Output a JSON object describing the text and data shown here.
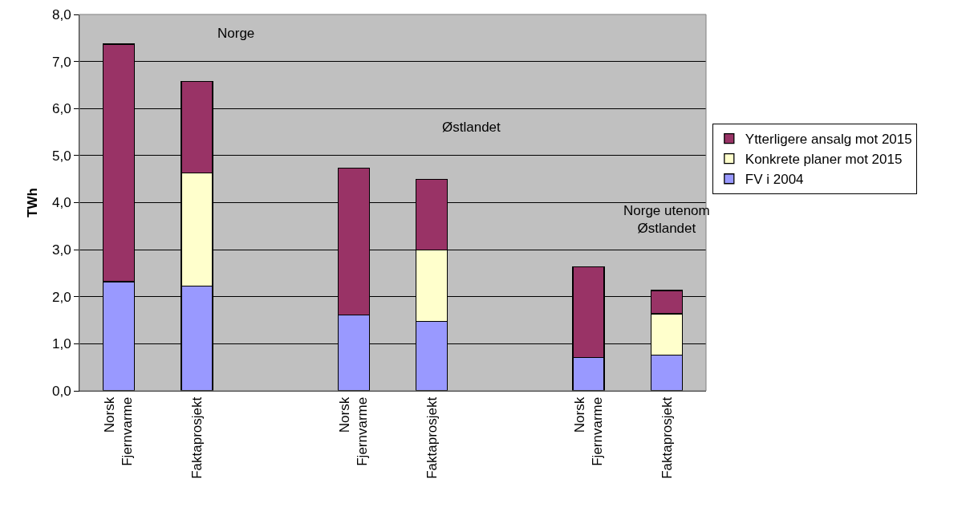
{
  "chart_data": {
    "type": "bar",
    "stacked": true,
    "ylabel": "TWh",
    "categories": [
      "Norsk Fjernvarme",
      "Faktaprosjekt",
      null,
      "Norsk Fjernvarme",
      "Faktaprosjekt",
      null,
      "Norsk Fjernvarme",
      "Faktaprosjekt"
    ],
    "series": [
      {
        "name": "FV i 2004",
        "color": "#9999ff",
        "values": [
          2.32,
          2.23,
          null,
          1.61,
          1.48,
          null,
          0.71,
          0.76
        ]
      },
      {
        "name": "Konkrete planer mot 2015",
        "color": "#ffffcc",
        "values": [
          null,
          2.4,
          null,
          null,
          1.51,
          null,
          null,
          0.88
        ]
      },
      {
        "name": "Ytterligere ansalg mot 2015",
        "color": "#993366",
        "values": [
          5.05,
          1.95,
          null,
          3.12,
          1.5,
          null,
          1.93,
          0.49
        ]
      }
    ],
    "ylim": [
      0,
      8
    ],
    "yticks": [
      {
        "value": 0,
        "label": "0,0"
      },
      {
        "value": 1,
        "label": "1,0"
      },
      {
        "value": 2,
        "label": "2,0"
      },
      {
        "value": 3,
        "label": "3,0"
      },
      {
        "value": 4,
        "label": "4,0"
      },
      {
        "value": 5,
        "label": "5,0"
      },
      {
        "value": 6,
        "label": "6,0"
      },
      {
        "value": 7,
        "label": "7,0"
      },
      {
        "value": 8,
        "label": "8,0"
      }
    ],
    "annotations": [
      "Norge",
      "Østlandet",
      "Norge utenom\nØstlandet"
    ],
    "grid": "y",
    "legend": "right"
  }
}
